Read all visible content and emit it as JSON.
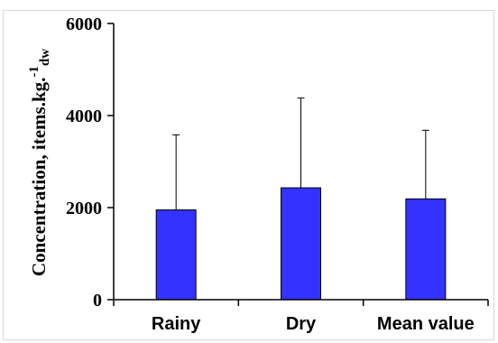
{
  "chart_data": {
    "type": "bar",
    "categories": [
      "Rainy",
      "Dry",
      "Mean value"
    ],
    "values": [
      1950,
      2430,
      2190
    ],
    "error_upper": [
      3580,
      4380,
      3680
    ],
    "ylabel": "Concentration, items.kg.-1dw",
    "ylabel_parts": {
      "main": "Concentration, items.kg.",
      "sup": "-1",
      "sub": "dw"
    },
    "ylim": [
      0,
      6000
    ],
    "yticks": [
      "0",
      "2000",
      "4000",
      "6000"
    ],
    "ytick_values": [
      0,
      2000,
      4000,
      6000
    ],
    "grid": false,
    "legend": "none",
    "colors": {
      "bar_fill": "#3333ff",
      "bar_edge": "#000000",
      "axis": "#000000"
    }
  }
}
